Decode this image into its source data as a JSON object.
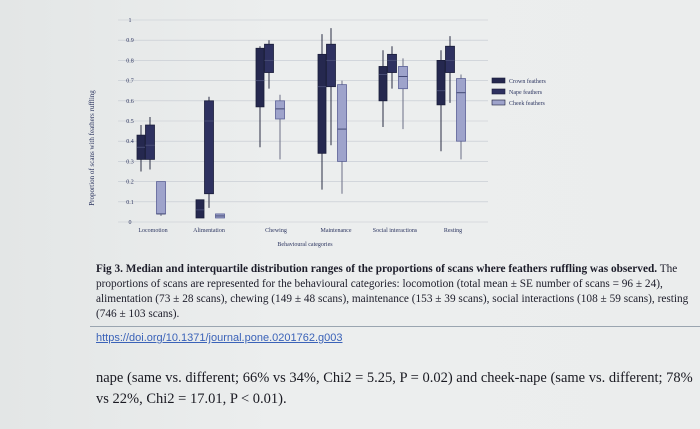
{
  "chart_data": {
    "type": "box",
    "xlabel": "Behavioural categories",
    "ylabel": "Proportion of scans with feathers ruffling",
    "ylim": [
      0,
      1
    ],
    "yticks": [
      {
        "v": 0,
        "t": "0"
      },
      {
        "v": 0.1,
        "t": "0.1"
      },
      {
        "v": 0.2,
        "t": "0.2"
      },
      {
        "v": 0.3,
        "t": "0.3"
      },
      {
        "v": 0.4,
        "t": "0.4"
      },
      {
        "v": 0.5,
        "t": "0.5"
      },
      {
        "v": 0.6,
        "t": "0.6"
      },
      {
        "v": 0.7,
        "t": "0.7"
      },
      {
        "v": 0.8,
        "t": "0.8"
      },
      {
        "v": 0.9,
        "t": "0.9"
      },
      {
        "v": 1,
        "t": "1"
      }
    ],
    "grid": true,
    "legend_position": "right",
    "categories": [
      "Locomotion",
      "Alimentation",
      "Chewing",
      "Maintenance",
      "Social interactions",
      "Resting"
    ],
    "series": [
      {
        "name": "Crown feathers",
        "color": "#25284f",
        "boxes": [
          {
            "min": 0.25,
            "q1": 0.31,
            "median": 0.37,
            "q3": 0.43,
            "max": 0.48
          },
          {
            "min": 0.02,
            "q1": 0.02,
            "median": 0.06,
            "q3": 0.11,
            "max": 0.11
          },
          {
            "min": 0.37,
            "q1": 0.57,
            "median": 0.7,
            "q3": 0.86,
            "max": 0.87
          },
          {
            "min": 0.16,
            "q1": 0.34,
            "median": 0.67,
            "q3": 0.83,
            "max": 0.93
          },
          {
            "min": 0.47,
            "q1": 0.6,
            "median": 0.73,
            "q3": 0.77,
            "max": 0.85
          },
          {
            "min": 0.35,
            "q1": 0.58,
            "median": 0.65,
            "q3": 0.8,
            "max": 0.85
          }
        ]
      },
      {
        "name": "Nape feathers",
        "color": "#2e3160",
        "boxes": [
          {
            "min": 0.26,
            "q1": 0.31,
            "median": 0.38,
            "q3": 0.48,
            "max": 0.52
          },
          {
            "min": 0.07,
            "q1": 0.14,
            "median": 0.5,
            "q3": 0.6,
            "max": 0.62
          },
          {
            "min": 0.66,
            "q1": 0.74,
            "median": 0.8,
            "q3": 0.88,
            "max": 0.9
          },
          {
            "min": 0.38,
            "q1": 0.67,
            "median": 0.8,
            "q3": 0.88,
            "max": 0.96
          },
          {
            "min": 0.66,
            "q1": 0.74,
            "median": 0.8,
            "q3": 0.83,
            "max": 0.87
          },
          {
            "min": 0.59,
            "q1": 0.74,
            "median": 0.8,
            "q3": 0.87,
            "max": 0.92
          }
        ]
      },
      {
        "name": "Cheek feathers",
        "color": "#9ea3cb",
        "boxes": [
          {
            "min": 0.03,
            "q1": 0.04,
            "median": 0.04,
            "q3": 0.2,
            "max": 0.2
          },
          {
            "min": 0.02,
            "q1": 0.02,
            "median": 0.03,
            "q3": 0.04,
            "max": 0.04
          },
          {
            "min": 0.31,
            "q1": 0.51,
            "median": 0.56,
            "q3": 0.6,
            "max": 0.63
          },
          {
            "min": 0.14,
            "q1": 0.3,
            "median": 0.46,
            "q3": 0.68,
            "max": 0.7
          },
          {
            "min": 0.46,
            "q1": 0.66,
            "median": 0.72,
            "q3": 0.77,
            "max": 0.81
          },
          {
            "min": 0.31,
            "q1": 0.4,
            "median": 0.64,
            "q3": 0.71,
            "max": 0.73
          }
        ]
      }
    ]
  },
  "caption": {
    "bold": "Fig 3. Median and interquartile distribution ranges of the proportions of scans where feathers ruffling was observed.",
    "text": "The proportions of scans are represented for the behavioural categories: locomotion (total mean ± SE number of scans = 96 ± 24), alimentation (73 ± 28 scans), chewing (149 ± 48 scans), maintenance (153 ± 39 scans), social interactions (108 ± 59 scans), resting (746 ± 103 scans)."
  },
  "doi": "https://doi.org/10.1371/journal.pone.0201762.g003",
  "body_text": "nape (same vs. different; 66% vs 34%, Chi2 = 5.25, P = 0.02) and cheek-nape (same vs. different; 78% vs 22%, Chi2 = 17.01, P < 0.01)."
}
